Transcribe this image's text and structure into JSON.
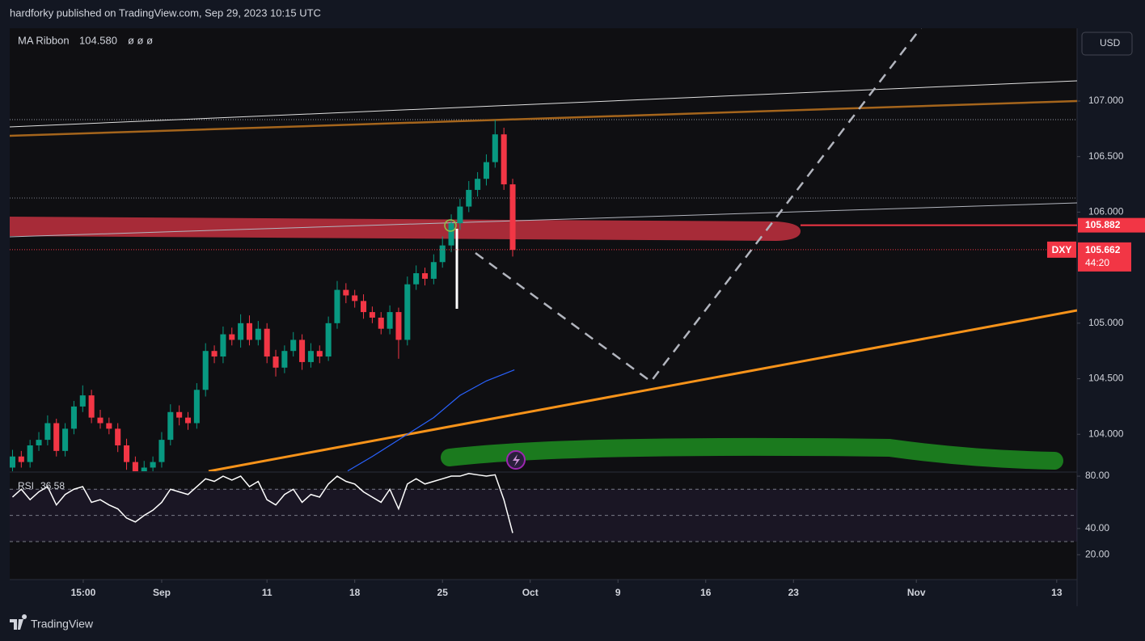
{
  "header": {
    "publisher": "hardforky published on TradingView.com, Sep 29, 2023 10:15 UTC"
  },
  "footer": {
    "brand": "TradingView"
  },
  "currency": "USD",
  "chart_data": {
    "type": "candlestick",
    "symbol": "DXY",
    "countdown": "44:20",
    "up_color": "#089981",
    "down_color": "#f23645",
    "x": [
      -8.5,
      -8,
      -7.5,
      -7,
      -6.5,
      -6,
      -5.5,
      -5,
      -4.5,
      -4,
      -3.5,
      -3,
      -2.5,
      -2,
      -1.5,
      -1,
      -0.5,
      0,
      0.5,
      1,
      1.5,
      2,
      2.5,
      3,
      3.5,
      4,
      4.5,
      5,
      5.5,
      6,
      6.5,
      7,
      7.5,
      8,
      8.5,
      9,
      9.5,
      10,
      10.5,
      11,
      11.5,
      12,
      12.5,
      13,
      13.5,
      14,
      14.5,
      15,
      15.5,
      16,
      16.5,
      17,
      17.5,
      18,
      18.5,
      19,
      19.5,
      20
    ],
    "open": [
      103.7,
      103.8,
      103.75,
      103.9,
      103.95,
      104.1,
      103.85,
      104.05,
      104.25,
      104.35,
      104.15,
      104.1,
      104.05,
      103.9,
      103.75,
      103.65,
      103.7,
      103.75,
      103.95,
      104.2,
      104.15,
      104.1,
      104.4,
      104.75,
      104.7,
      104.9,
      104.85,
      105.0,
      104.85,
      104.95,
      104.7,
      104.6,
      104.75,
      104.85,
      104.65,
      104.75,
      104.7,
      105.0,
      105.3,
      105.25,
      105.2,
      105.1,
      105.05,
      104.95,
      105.1,
      104.85,
      105.35,
      105.45,
      105.4,
      105.55,
      105.7,
      105.9,
      106.05,
      106.2,
      106.3,
      106.45,
      106.7,
      106.25
    ],
    "high": [
      103.86,
      103.85,
      103.95,
      104.02,
      104.17,
      104.14,
      104.1,
      104.3,
      104.44,
      104.4,
      104.22,
      104.15,
      104.1,
      103.96,
      103.8,
      103.76,
      103.8,
      104.02,
      104.27,
      104.26,
      104.2,
      104.46,
      104.82,
      104.8,
      104.97,
      104.96,
      105.08,
      105.07,
      105.02,
      105.0,
      104.76,
      104.8,
      104.92,
      104.9,
      104.82,
      104.8,
      105.06,
      105.38,
      105.36,
      105.3,
      105.26,
      105.15,
      105.1,
      105.16,
      105.14,
      105.42,
      105.52,
      105.5,
      105.62,
      105.78,
      105.98,
      106.12,
      106.28,
      106.36,
      106.52,
      106.83,
      106.76,
      106.3
    ],
    "low": [
      103.64,
      103.7,
      103.7,
      103.85,
      103.9,
      103.8,
      103.8,
      104.0,
      104.2,
      104.1,
      104.05,
      104.0,
      103.84,
      103.68,
      103.58,
      103.6,
      103.64,
      103.7,
      103.9,
      104.08,
      104.04,
      104.05,
      104.34,
      104.64,
      104.64,
      104.8,
      104.78,
      104.8,
      104.8,
      104.64,
      104.52,
      104.55,
      104.7,
      104.58,
      104.6,
      104.64,
      104.66,
      104.95,
      105.18,
      105.14,
      105.04,
      105.0,
      104.9,
      104.9,
      104.68,
      104.8,
      105.3,
      105.34,
      105.35,
      105.5,
      105.64,
      105.84,
      106.0,
      106.14,
      106.24,
      106.4,
      106.2,
      105.6
    ],
    "close": [
      103.8,
      103.75,
      103.9,
      103.95,
      104.1,
      103.85,
      104.05,
      104.25,
      104.35,
      104.15,
      104.1,
      104.05,
      103.9,
      103.75,
      103.65,
      103.7,
      103.75,
      103.95,
      104.2,
      104.15,
      104.1,
      104.4,
      104.75,
      104.7,
      104.9,
      104.85,
      105.0,
      104.85,
      104.95,
      104.7,
      104.6,
      104.75,
      104.85,
      104.65,
      104.75,
      104.7,
      105.0,
      105.3,
      105.25,
      105.2,
      105.1,
      105.05,
      104.95,
      105.1,
      104.85,
      105.35,
      105.45,
      105.4,
      105.55,
      105.7,
      105.9,
      106.05,
      106.2,
      106.3,
      106.45,
      106.7,
      106.25,
      105.66
    ],
    "last_price": {
      "value": 105.662,
      "label": "105.662"
    },
    "price_line": {
      "value": 105.882,
      "label": "105.882"
    },
    "ma_ribbon": {
      "name": "MA Ribbon",
      "value": {
        "value": 104.58,
        "label": "104.580"
      },
      "extra": "ø  ø  ø",
      "color": "#2962ff",
      "x": [
        10.6,
        12,
        14,
        15.5,
        17,
        18.5,
        20.1
      ],
      "values": [
        103.67,
        103.8,
        104.0,
        104.15,
        104.35,
        104.48,
        104.58
      ]
    },
    "xlim": [
      -8.66,
      52.16
    ],
    "ylim": [
      103.667,
      107.655
    ],
    "yticks": [
      {
        "value": 104,
        "label": "104.000"
      },
      {
        "value": 104.5,
        "label": "104.500"
      },
      {
        "value": 105,
        "label": "105.000"
      },
      {
        "value": 106,
        "label": "106.000"
      },
      {
        "value": 106.5,
        "label": "106.500"
      },
      {
        "value": 107,
        "label": "107.000"
      }
    ],
    "xticks": [
      {
        "value": -4.47,
        "label": "15:00"
      },
      {
        "value": 0,
        "label": "Sep"
      },
      {
        "value": 6,
        "label": "11"
      },
      {
        "value": 11,
        "label": "18"
      },
      {
        "value": 16,
        "label": "25"
      },
      {
        "value": 21,
        "label": "Oct"
      },
      {
        "value": 26,
        "label": "9"
      },
      {
        "value": 31,
        "label": "16"
      },
      {
        "value": 36,
        "label": "23"
      },
      {
        "value": 43,
        "label": "Nov"
      },
      {
        "value": 51,
        "label": "13"
      }
    ],
    "grid": false,
    "rsi": {
      "name": "RSI",
      "last": {
        "value": 36.58,
        "label": "36.58"
      },
      "color": "#ffffff",
      "values": [
        64,
        70,
        62,
        68,
        72,
        58,
        66,
        70,
        72,
        60,
        62,
        58,
        55,
        48,
        45,
        50,
        54,
        60,
        70,
        68,
        66,
        72,
        78,
        76,
        80,
        77,
        80,
        72,
        76,
        62,
        58,
        66,
        70,
        60,
        66,
        64,
        74,
        80,
        76,
        74,
        68,
        64,
        60,
        70,
        55,
        74,
        78,
        74,
        76,
        78,
        80,
        80,
        82,
        81,
        80,
        81,
        62,
        36.58
      ],
      "ylim": [
        1,
        82.5
      ],
      "yticks": [
        {
          "value": 80,
          "label": "80.00"
        },
        {
          "value": 40,
          "label": "40.00"
        },
        {
          "value": 20,
          "label": "20.00"
        }
      ],
      "levels": [
        70,
        50,
        30
      ]
    }
  }
}
